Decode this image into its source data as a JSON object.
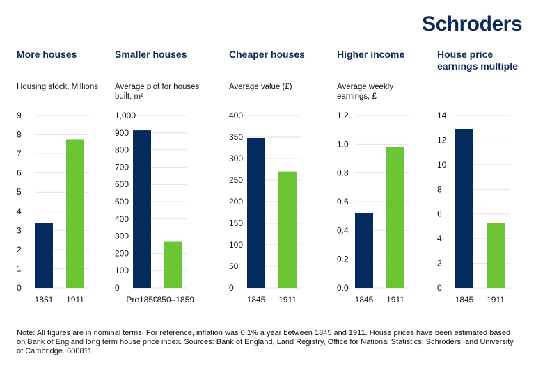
{
  "brand": {
    "logo_text": "Schroders"
  },
  "colors": {
    "navy": "#052a5c",
    "green": "#6cc534",
    "title": "#0d2a55",
    "grid": "#e2e2e2"
  },
  "note": "Note: All figures are in nominal terms. For reference, inflation was 0.1% a year between 1845 and 1911. House prices have been estimated based on Bank of England long term house price index. Sources: Bank of England, Land Registry, Office for National Statistics, Schroders, and University of Cambridge. 600811",
  "chart_data": [
    {
      "type": "bar",
      "title": "More houses",
      "ylabel": "Housing stock, Millions",
      "categories": [
        "1851",
        "1911"
      ],
      "values": [
        3.4,
        7.75
      ],
      "ylim": [
        0,
        9
      ],
      "yticks": [
        0,
        1,
        2,
        3,
        4,
        5,
        6,
        7,
        8,
        9
      ],
      "yticklabels": [
        "0",
        "1",
        "2",
        "3",
        "4",
        "5",
        "6",
        "7",
        "8",
        "9"
      ],
      "grid": true
    },
    {
      "type": "bar",
      "title": "Smaller houses",
      "ylabel": "Average plot for houses built, m²",
      "categories": [
        "Pre1850",
        "1850–1859"
      ],
      "values": [
        915,
        268
      ],
      "ylim": [
        0,
        1000
      ],
      "yticks": [
        0,
        100,
        200,
        300,
        400,
        500,
        600,
        700,
        800,
        900,
        1000
      ],
      "yticklabels": [
        "0",
        "100",
        "200",
        "300",
        "400",
        "500",
        "600",
        "700",
        "800",
        "900",
        "1,000"
      ],
      "grid": true
    },
    {
      "type": "bar",
      "title": "Cheaper houses",
      "ylabel": "Average value (£)",
      "categories": [
        "1845",
        "1911"
      ],
      "values": [
        348,
        270
      ],
      "ylim": [
        0,
        400
      ],
      "yticks": [
        0,
        50,
        100,
        150,
        200,
        250,
        300,
        350,
        400
      ],
      "yticklabels": [
        "0",
        "50",
        "100",
        "150",
        "200",
        "250",
        "300",
        "350",
        "400"
      ],
      "grid": true
    },
    {
      "type": "bar",
      "title": "Higher income",
      "ylabel": "Average weekly earnings, £",
      "categories": [
        "1845",
        "1911"
      ],
      "values": [
        0.52,
        0.98
      ],
      "ylim": [
        0,
        1.2
      ],
      "yticks": [
        0,
        0.2,
        0.4,
        0.6,
        0.8,
        1.0,
        1.2
      ],
      "yticklabels": [
        "0.0",
        "0.2",
        "0.4",
        "0.6",
        "0.8",
        "1.0",
        "1.2"
      ],
      "grid": true
    },
    {
      "type": "bar",
      "title": "House price earnings multiple",
      "ylabel": "",
      "categories": [
        "1845",
        "1911"
      ],
      "values": [
        12.9,
        5.25
      ],
      "ylim": [
        0,
        14
      ],
      "yticks": [
        0,
        2,
        4,
        6,
        8,
        10,
        12,
        14
      ],
      "yticklabels": [
        "0",
        "2",
        "4",
        "6",
        "8",
        "10",
        "12",
        "14"
      ],
      "grid": true
    }
  ]
}
